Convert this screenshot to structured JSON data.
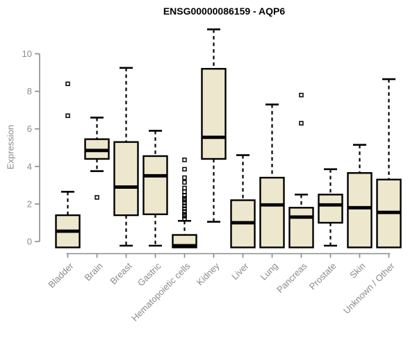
{
  "figure": {
    "title": "ENSG00000086159 - AQP6"
  },
  "y_axis": {
    "label": "Expression",
    "tick_labels": [
      "0",
      "2",
      "4",
      "6",
      "8",
      "10"
    ]
  },
  "x_axis": {
    "categories": [
      "Bladder",
      "Brain",
      "Breast",
      "Gastric",
      "Hematopoietic cells",
      "Kidney",
      "Liver",
      "Lung",
      "Pancreas",
      "Prostate",
      "Skin",
      "Unknown / Other"
    ]
  },
  "colors": {
    "background": "#ffffff",
    "box_fill": "#EDE8CD",
    "box_stroke": "#000000",
    "median": "#000000",
    "axis": "#8a8a8a",
    "label": "#8a8a8a",
    "title": "#000000"
  },
  "chart_data": {
    "type": "boxplot",
    "title": "ENSG00000086159 - AQP6",
    "xlabel": "",
    "ylabel": "Expression",
    "ylim": [
      -0.5,
      11.75
    ],
    "yticks": [
      0,
      2,
      4,
      6,
      8,
      10
    ],
    "grid": false,
    "legend": "none",
    "categories": [
      "Bladder",
      "Brain",
      "Breast",
      "Gastric",
      "Hematopoietic cells",
      "Kidney",
      "Liver",
      "Lung",
      "Pancreas",
      "Prostate",
      "Skin",
      "Unknown / Other"
    ],
    "boxes": [
      {
        "category": "Bladder",
        "whisker_low": null,
        "q1": 0,
        "median": 0.55,
        "q3": 1.4,
        "whisker_high": 2.65,
        "outliers": [
          6.7,
          8.4
        ]
      },
      {
        "category": "Brain",
        "whisker_low": 3.75,
        "q1": 4.4,
        "median": 4.85,
        "q3": 5.45,
        "whisker_high": 6.6,
        "outliers": [
          2.35
        ]
      },
      {
        "category": "Breast",
        "whisker_low": 0.05,
        "q1": 1.4,
        "median": 2.9,
        "q3": 5.3,
        "whisker_high": 9.25,
        "outliers": []
      },
      {
        "category": "Gastric",
        "whisker_low": 0.05,
        "q1": 1.45,
        "median": 3.5,
        "q3": 4.55,
        "whisker_high": 5.9,
        "outliers": []
      },
      {
        "category": "Hematopoietic cells",
        "whisker_low": null,
        "q1": 0,
        "median": 0.05,
        "q3": 0.35,
        "whisker_high": 1.1,
        "outliers": [
          1.2,
          1.35,
          1.45,
          1.6,
          1.75,
          1.9,
          2.05,
          2.2,
          2.3,
          2.45,
          2.65,
          2.85,
          3.15,
          3.4,
          3.85,
          4.35
        ]
      },
      {
        "category": "Kidney",
        "whisker_low": 1.05,
        "q1": 4.4,
        "median": 5.55,
        "q3": 9.2,
        "whisker_high": 11.3,
        "outliers": []
      },
      {
        "category": "Liver",
        "whisker_low": null,
        "q1": 0,
        "median": 1.0,
        "q3": 2.2,
        "whisker_high": 4.6,
        "outliers": []
      },
      {
        "category": "Lung",
        "whisker_low": null,
        "q1": 0,
        "median": 1.95,
        "q3": 3.4,
        "whisker_high": 7.3,
        "outliers": []
      },
      {
        "category": "Pancreas",
        "whisker_low": null,
        "q1": 0,
        "median": 1.3,
        "q3": 1.8,
        "whisker_high": 2.5,
        "outliers": [
          6.3,
          7.8
        ]
      },
      {
        "category": "Prostate",
        "whisker_low": 0.05,
        "q1": 1.0,
        "median": 1.95,
        "q3": 2.5,
        "whisker_high": 3.85,
        "outliers": []
      },
      {
        "category": "Skin",
        "whisker_low": null,
        "q1": 0,
        "median": 1.8,
        "q3": 3.65,
        "whisker_high": 5.15,
        "outliers": []
      },
      {
        "category": "Unknown / Other",
        "whisker_low": null,
        "q1": 0,
        "median": 1.55,
        "q3": 3.3,
        "whisker_high": 8.65,
        "outliers": []
      }
    ]
  }
}
